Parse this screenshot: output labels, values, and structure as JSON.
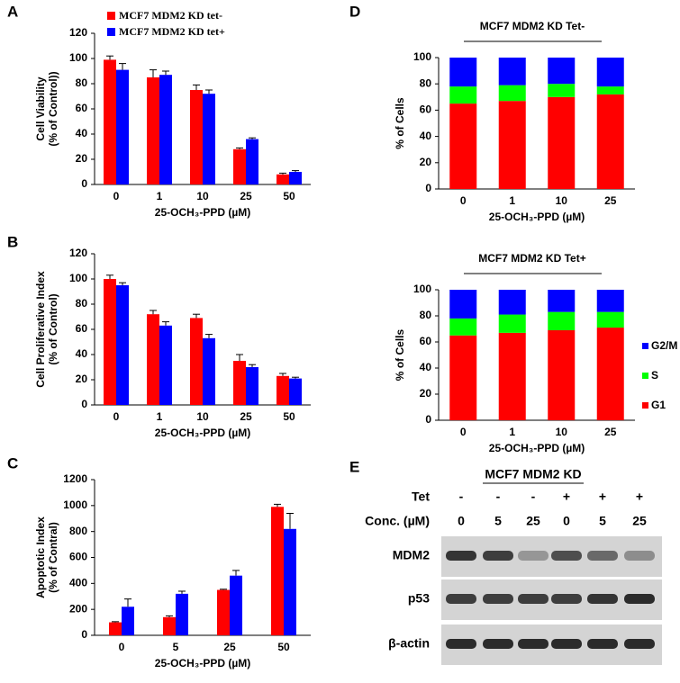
{
  "chart_data": [
    {
      "type": "bar",
      "panel_label": "A",
      "ylabel": [
        "Cell Viability",
        "(% of Control))"
      ],
      "xlabel": "25-OCH₃-PPD (µM)",
      "categories": [
        "0",
        "1",
        "10",
        "25",
        "50"
      ],
      "series": [
        {
          "name": "MCF7 MDM2 KD tet-",
          "color": "#ff0000",
          "values": [
            99,
            85,
            75,
            28,
            8
          ],
          "errors": [
            3,
            6,
            4,
            1,
            1
          ]
        },
        {
          "name": "MCF7 MDM2 KD tet+",
          "color": "#0000ff",
          "values": [
            91,
            87,
            72,
            36,
            10
          ],
          "errors": [
            5,
            3,
            3,
            1,
            1
          ]
        }
      ],
      "ylim": [
        0,
        120
      ],
      "yticks": [
        0,
        20,
        40,
        60,
        80,
        100,
        120
      ],
      "legend": "top"
    },
    {
      "type": "bar",
      "panel_label": "B",
      "ylabel": [
        "Cell Proliferative Index",
        "(% of Control)"
      ],
      "xlabel": "25-OCH₃-PPD (µM)",
      "categories": [
        "0",
        "1",
        "10",
        "25",
        "50"
      ],
      "series": [
        {
          "color": "#ff0000",
          "values": [
            100,
            72,
            69,
            35,
            23
          ],
          "errors": [
            3,
            3,
            3,
            5,
            2
          ]
        },
        {
          "color": "#0000ff",
          "values": [
            95,
            63,
            53,
            30,
            21
          ],
          "errors": [
            2,
            3,
            3,
            2,
            1
          ]
        }
      ],
      "ylim": [
        0,
        120
      ],
      "yticks": [
        0,
        20,
        40,
        60,
        80,
        100,
        120
      ]
    },
    {
      "type": "bar",
      "panel_label": "C",
      "ylabel": [
        "Apoptotic Index",
        "(% of Contral)"
      ],
      "xlabel": "25-OCH₃-PPD (µM)",
      "categories": [
        "0",
        "5",
        "25",
        "50"
      ],
      "series": [
        {
          "color": "#ff0000",
          "values": [
            100,
            140,
            350,
            990
          ],
          "errors": [
            5,
            10,
            5,
            20
          ]
        },
        {
          "color": "#0000ff",
          "values": [
            220,
            320,
            460,
            820
          ],
          "errors": [
            60,
            20,
            40,
            120
          ]
        }
      ],
      "ylim": [
        0,
        1200
      ],
      "yticks": [
        0,
        200,
        400,
        600,
        800,
        1000,
        1200
      ]
    },
    {
      "type": "stacked_bar",
      "panel_label": "D",
      "title": "MCF7 MDM2 KD Tet-",
      "ylabel": [
        "% of Cells"
      ],
      "xlabel": "25-OCH₃-PPD (µM)",
      "categories": [
        "0",
        "1",
        "10",
        "25"
      ],
      "series": [
        {
          "color": "#ff0000",
          "values": [
            65,
            67,
            70,
            72
          ]
        },
        {
          "color": "#00ff00",
          "values": [
            13,
            12,
            10,
            6
          ]
        },
        {
          "color": "#0000ff",
          "values": [
            22,
            21,
            20,
            22
          ]
        }
      ],
      "ylim": [
        0,
        100
      ],
      "yticks": [
        0,
        20,
        40,
        60,
        80,
        100
      ]
    },
    {
      "type": "stacked_bar",
      "title": "MCF7 MDM2 KD Tet+",
      "ylabel": [
        "% of Cells"
      ],
      "xlabel": "25-OCH₃-PPD (µM)",
      "categories": [
        "0",
        "1",
        "10",
        "25"
      ],
      "series": [
        {
          "name": "G1",
          "color": "#ff0000",
          "values": [
            65,
            67,
            69,
            71
          ]
        },
        {
          "name": "S",
          "color": "#00ff00",
          "values": [
            13,
            14,
            14,
            12
          ]
        },
        {
          "name": "G2/M",
          "color": "#0000ff",
          "values": [
            22,
            19,
            17,
            17
          ]
        }
      ],
      "ylim": [
        0,
        100
      ],
      "yticks": [
        0,
        20,
        40,
        60,
        80,
        100
      ],
      "legend": "right"
    }
  ],
  "blot": {
    "panel_label": "E",
    "title": "MCF7 MDM2 KD",
    "rows": [
      {
        "label": "Tet",
        "lanes": [
          "-",
          "-",
          "-",
          "+",
          "+",
          "+"
        ]
      },
      {
        "label": "Conc. (µM)",
        "lanes": [
          "0",
          "5",
          "25",
          "0",
          "5",
          "25"
        ]
      }
    ],
    "bands": [
      "MDM2",
      "p53",
      "β-actin"
    ]
  }
}
